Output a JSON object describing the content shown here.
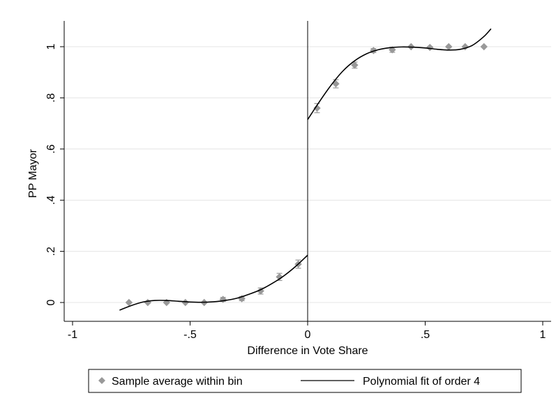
{
  "chart_data": {
    "type": "scatter",
    "title": "",
    "xlabel": "Difference in Vote Share",
    "ylabel": "PP Mayor",
    "xlim": [
      -1,
      1
    ],
    "ylim": [
      -0.07,
      1.1
    ],
    "x_ticks": [
      -1,
      -0.5,
      0,
      0.5,
      1
    ],
    "x_tick_labels": [
      "-1",
      "-.5",
      "0",
      ".5",
      "1"
    ],
    "y_ticks": [
      0,
      0.2,
      0.4,
      0.6,
      0.8,
      1
    ],
    "y_tick_labels": [
      "0",
      ".2",
      ".4",
      ".6",
      ".8",
      "1"
    ],
    "grid": "horizontal",
    "cutoff_line_x": 0,
    "legend_position": "bottom",
    "colors": {
      "points": "#999999",
      "error_bars": "#9a9a9a",
      "fit_line": "#000000",
      "grid": "#e4e4e4"
    },
    "series": [
      {
        "name": "Sample average within bin",
        "kind": "scatter",
        "marker": "diamond",
        "x": [
          -0.76,
          -0.68,
          -0.6,
          -0.52,
          -0.44,
          -0.36,
          -0.28,
          -0.2,
          -0.12,
          -0.04,
          0.04,
          0.12,
          0.2,
          0.28,
          0.36,
          0.44,
          0.52,
          0.6,
          0.67,
          0.75
        ],
        "y": [
          0.0,
          0.0,
          0.0,
          0.0,
          0.0,
          0.012,
          0.015,
          0.045,
          0.1,
          0.15,
          0.76,
          0.855,
          0.928,
          0.985,
          0.988,
          1.0,
          0.997,
          1.0,
          1.0,
          1.0
        ],
        "err": [
          0,
          0,
          0,
          0,
          0,
          0.008,
          0.008,
          0.012,
          0.014,
          0.016,
          0.018,
          0.016,
          0.012,
          0.008,
          0.01,
          0,
          0.004,
          0,
          0,
          0
        ]
      },
      {
        "name": "Polynomial fit of order 4",
        "kind": "line",
        "segments": [
          {
            "x": [
              -0.8,
              -0.75,
              -0.7,
              -0.65,
              -0.6,
              -0.55,
              -0.5,
              -0.45,
              -0.4,
              -0.35,
              -0.3,
              -0.25,
              -0.2,
              -0.15,
              -0.1,
              -0.05,
              0.0
            ],
            "y": [
              -0.03,
              -0.012,
              0.002,
              0.008,
              0.008,
              0.005,
              0.002,
              0.001,
              0.003,
              0.008,
              0.017,
              0.032,
              0.05,
              0.075,
              0.105,
              0.142,
              0.185
            ]
          },
          {
            "x": [
              0.0,
              0.05,
              0.1,
              0.15,
              0.2,
              0.25,
              0.3,
              0.35,
              0.4,
              0.45,
              0.5,
              0.55,
              0.6,
              0.65,
              0.7,
              0.75,
              0.78
            ],
            "y": [
              0.715,
              0.785,
              0.85,
              0.905,
              0.945,
              0.972,
              0.988,
              0.996,
              0.999,
              0.998,
              0.995,
              0.99,
              0.987,
              0.99,
              1.005,
              1.04,
              1.07
            ]
          }
        ]
      }
    ]
  }
}
